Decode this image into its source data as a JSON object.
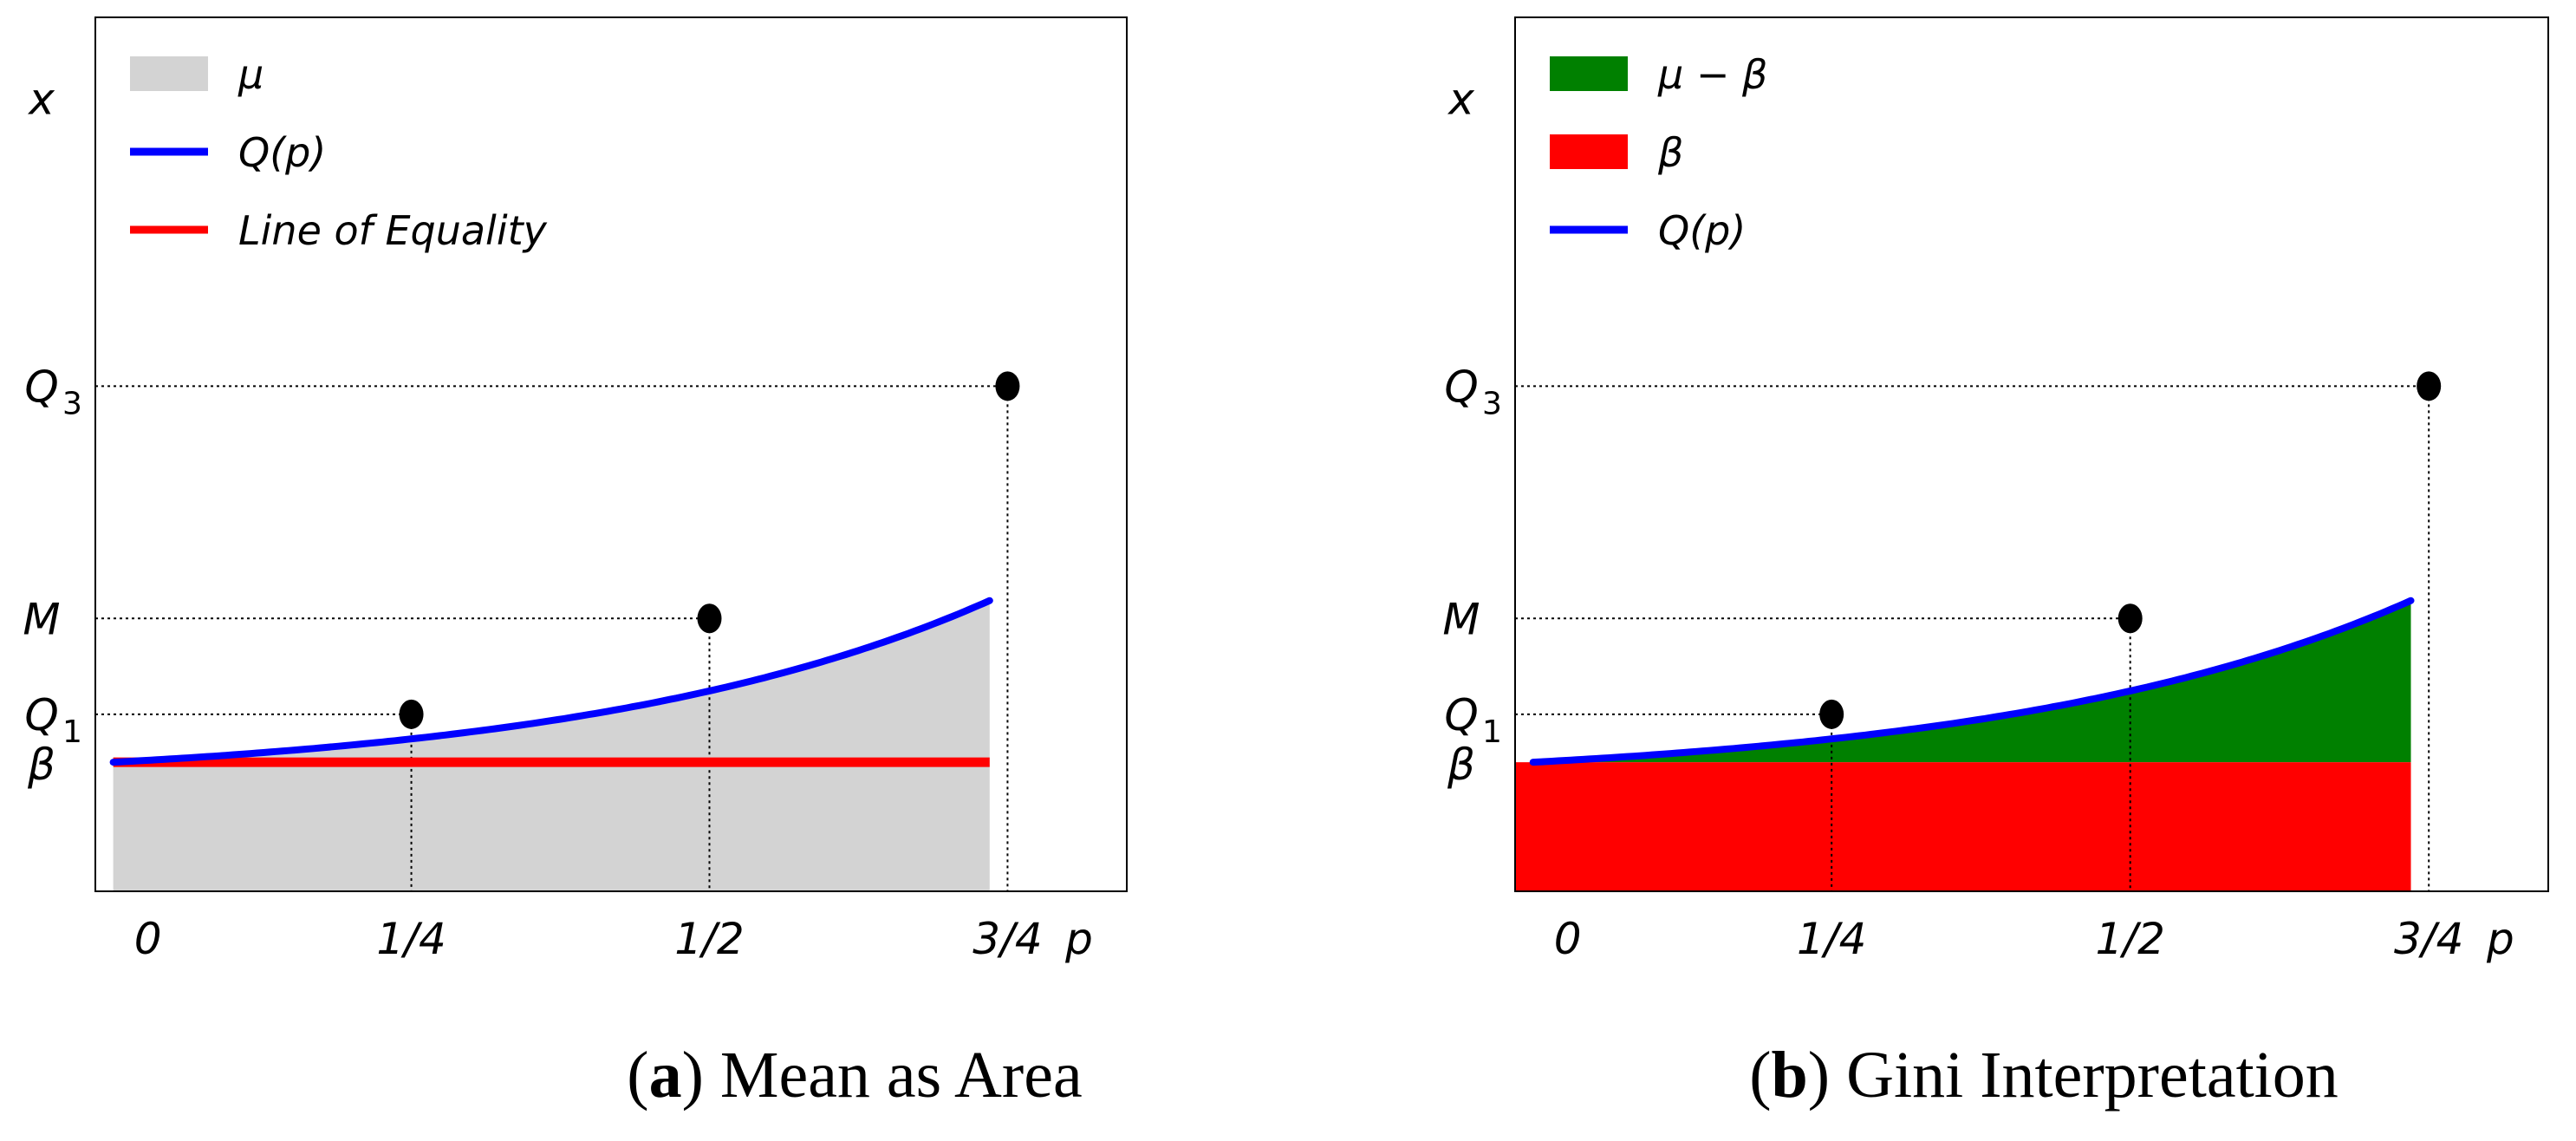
{
  "figure_captions": [
    {
      "letter": "a",
      "text": " Mean as Area",
      "prefix": "(",
      "suffix": ")"
    },
    {
      "letter": "b",
      "text": " Gini Interpretation",
      "prefix": "(",
      "suffix": ")"
    }
  ],
  "colors": {
    "curve": "#0000ff",
    "equality_line": "#ff0000",
    "mean_area": "#d3d3d3",
    "gini_area": "#008000",
    "beta_area": "#ff0000",
    "points": "#000000"
  },
  "chart_data": [
    {
      "type": "area",
      "panel": "a",
      "curve_label": "Q(p)",
      "y_axis_label": "x",
      "x_axis_label": "p",
      "xlim": [
        -0.015,
        0.85
      ],
      "ylim": [
        -0.35,
        2.02
      ],
      "curve": {
        "formula": "Q(p) = beta * exp(k * p)",
        "beta": 0.06,
        "k": 2.88,
        "p_range": [
          0,
          0.735
        ]
      },
      "x_ticks": [
        {
          "value": 0,
          "label": "0"
        },
        {
          "value": 0.25,
          "label": "1/4"
        },
        {
          "value": 0.5,
          "label": "1/2"
        },
        {
          "value": 0.75,
          "label": "3/4"
        },
        {
          "value": 0.81,
          "label": "p"
        }
      ],
      "y_ticks": [
        {
          "name": "beta",
          "label": "β",
          "value": 0.0
        },
        {
          "name": "q1",
          "label": "Q",
          "sub": "1",
          "value": 0.13
        },
        {
          "name": "median",
          "label": "M",
          "value": 0.39
        },
        {
          "name": "q3",
          "label": "Q",
          "sub": "3",
          "value": 1.02
        },
        {
          "name": "x",
          "label": "x",
          "value": 1.8
        }
      ],
      "points": [
        {
          "p": 0.25,
          "x": 0.13,
          "label": "Q1"
        },
        {
          "p": 0.5,
          "x": 0.39,
          "label": "M"
        },
        {
          "p": 0.75,
          "x": 1.02,
          "label": "Q3"
        }
      ],
      "legend": [
        {
          "label": "μ",
          "kind": "patch",
          "color": "#d3d3d3"
        },
        {
          "label": "Q(p)",
          "kind": "line",
          "color": "#0000ff"
        },
        {
          "label": "Line of Equality",
          "kind": "line",
          "color": "#ff0000"
        }
      ],
      "legend_position": "top-left"
    },
    {
      "type": "area",
      "panel": "b",
      "curve_label": "Q(p)",
      "y_axis_label": "x",
      "x_axis_label": "p",
      "xlim": [
        -0.015,
        0.85
      ],
      "ylim": [
        -0.35,
        2.02
      ],
      "curve": {
        "formula": "Q(p) = beta * exp(k * p)",
        "beta": 0.06,
        "k": 2.88,
        "p_range": [
          0,
          0.735
        ]
      },
      "x_ticks": [
        {
          "value": 0,
          "label": "0"
        },
        {
          "value": 0.25,
          "label": "1/4"
        },
        {
          "value": 0.5,
          "label": "1/2"
        },
        {
          "value": 0.75,
          "label": "3/4"
        },
        {
          "value": 0.81,
          "label": "p"
        }
      ],
      "y_ticks": [
        {
          "name": "beta",
          "label": "β",
          "value": 0.0
        },
        {
          "name": "q1",
          "label": "Q",
          "sub": "1",
          "value": 0.13
        },
        {
          "name": "median",
          "label": "M",
          "value": 0.39
        },
        {
          "name": "q3",
          "label": "Q",
          "sub": "3",
          "value": 1.02
        },
        {
          "name": "x",
          "label": "x",
          "value": 1.8
        }
      ],
      "points": [
        {
          "p": 0.25,
          "x": 0.13,
          "label": "Q1"
        },
        {
          "p": 0.5,
          "x": 0.39,
          "label": "M"
        },
        {
          "p": 0.75,
          "x": 1.02,
          "label": "Q3"
        }
      ],
      "legend": [
        {
          "label": "μ − β",
          "kind": "patch",
          "color": "#008000"
        },
        {
          "label": "β",
          "kind": "patch",
          "color": "#ff0000"
        },
        {
          "label": "Q(p)",
          "kind": "line",
          "color": "#0000ff"
        }
      ],
      "legend_position": "top-left"
    }
  ]
}
